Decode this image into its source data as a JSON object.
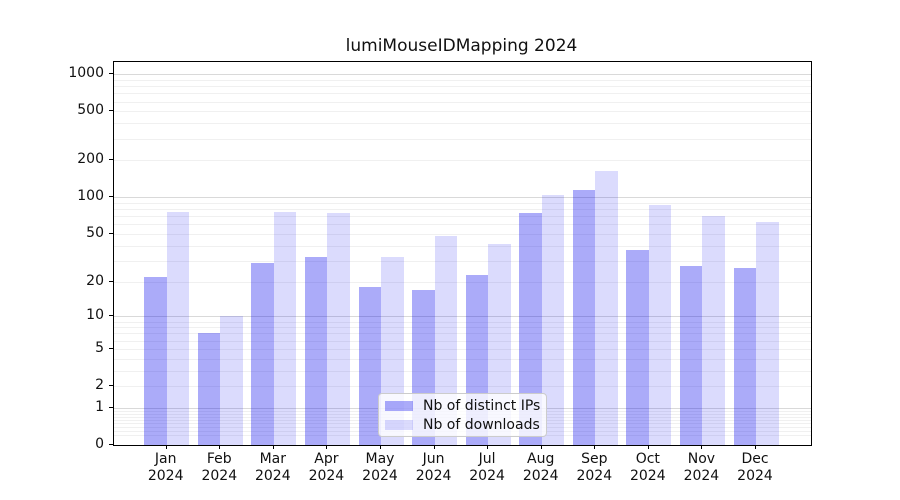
{
  "title": "lumiMouseIDMapping 2024",
  "colors": {
    "bar_ips": "rgba(0,0,238,0.33)",
    "bar_downloads": "rgba(0,0,238,0.14)",
    "bar_ips_solid": "#aaaaf9",
    "bar_downloads_solid": "#dcdcfb",
    "grid_major": "#d9d9d9",
    "grid_minor": "#f0f0f0",
    "spine": "#000000"
  },
  "legend": {
    "items": [
      {
        "label": "Nb of distinct IPs",
        "color_key": "bar_ips"
      },
      {
        "label": "Nb of downloads",
        "color_key": "bar_downloads"
      }
    ],
    "position": "lower center"
  },
  "y_axis": {
    "scale": "log1p",
    "ticks": [
      0,
      1,
      2,
      5,
      10,
      20,
      50,
      100,
      200,
      500,
      1000
    ]
  },
  "x_axis": {
    "year": "2024",
    "months": [
      "Jan",
      "Feb",
      "Mar",
      "Apr",
      "May",
      "Jun",
      "Jul",
      "Aug",
      "Sep",
      "Oct",
      "Nov",
      "Dec"
    ]
  },
  "chart_data": {
    "type": "bar",
    "title": "lumiMouseIDMapping 2024",
    "categories": [
      "Jan 2024",
      "Feb 2024",
      "Mar 2024",
      "Apr 2024",
      "May 2024",
      "Jun 2024",
      "Jul 2024",
      "Aug 2024",
      "Sep 2024",
      "Oct 2024",
      "Nov 2024",
      "Dec 2024"
    ],
    "series": [
      {
        "name": "Nb of distinct IPs",
        "values": [
          22,
          7,
          29,
          32,
          18,
          17,
          23,
          75,
          115,
          37,
          27,
          26
        ]
      },
      {
        "name": "Nb of downloads",
        "values": [
          76,
          10,
          76,
          74,
          32,
          48,
          41,
          105,
          165,
          86,
          71,
          63
        ]
      }
    ],
    "xlabel": "",
    "ylabel": "",
    "y_scale": "log1p",
    "y_ticks": [
      0,
      1,
      2,
      5,
      10,
      20,
      50,
      100,
      200,
      500,
      1000
    ],
    "ylim": [
      0,
      1250
    ],
    "grid": "horizontal major+minor",
    "legend_position": "lower center"
  }
}
